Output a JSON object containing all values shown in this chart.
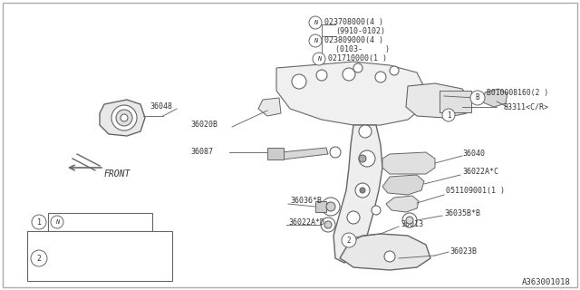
{
  "bg_color": "#ffffff",
  "line_color": "#666666",
  "text_color": "#333333",
  "part_ref": "A363001018",
  "figsize": [
    6.4,
    3.2
  ],
  "dpi": 100,
  "xlim": [
    0,
    640
  ],
  "ylim": [
    0,
    320
  ]
}
